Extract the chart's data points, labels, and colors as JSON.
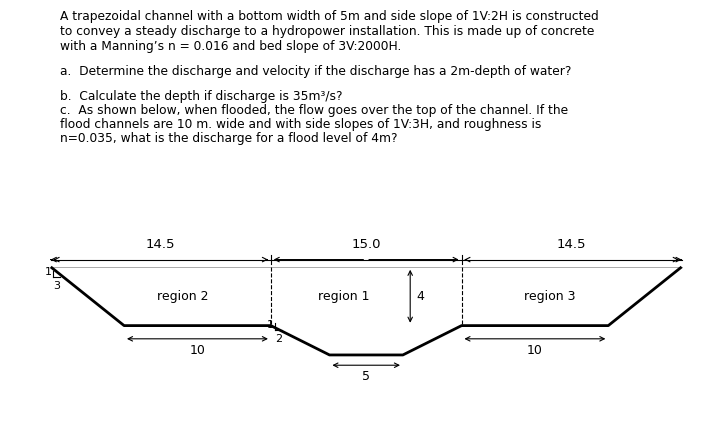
{
  "line1": "A trapezoidal channel with a bottom width of 5m and side slope of 1V:2H is constructed",
  "line2": "to convey a steady discharge to a hydropower installation. This is made up of concrete",
  "line3": "with a Manning’s n = 0.016 and bed slope of 3V:2000H.",
  "qa": "a.  Determine the discharge and velocity if the discharge has a 2m-depth of water?",
  "qb": "b.  Calculate the depth if discharge is 35m³/s?",
  "qc1": "c.  As shown below, when flooded, the flow goes over the top of the channel. If the",
  "qc2": "flood channels are 10 m. wide and with side slopes of 1V:3H, and roughness is",
  "qc3": "n=0.035, what is the discharge for a flood level of 4m?",
  "dim_top_left": "14.5",
  "dim_top_center": "15.0",
  "dim_top_right": "14.5",
  "dim_bot_left": "10",
  "dim_bot_right": "10",
  "dim_bot_ch": "5",
  "dim_depth": "4",
  "label_r1": "region 1",
  "label_r2": "region 2",
  "label_r3": "region 3",
  "bg": "#ffffff",
  "lc": "#000000"
}
